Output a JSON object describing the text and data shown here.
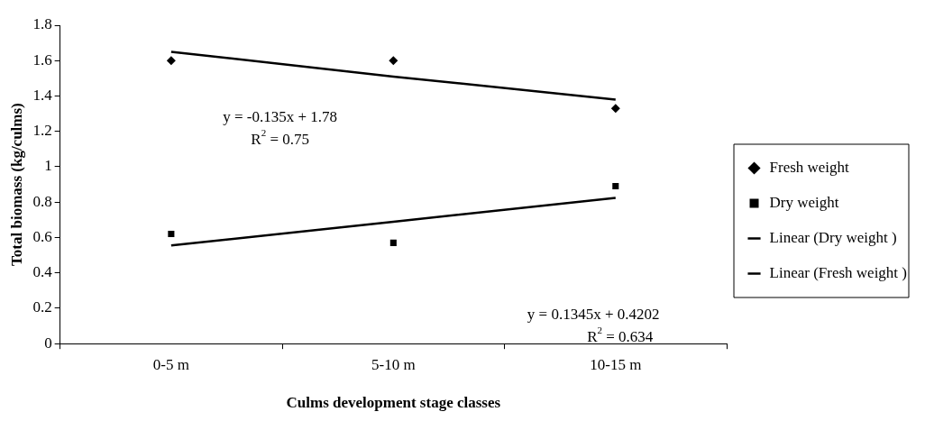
{
  "chart_data": {
    "type": "scatter",
    "xlabel": "Culms development stage classes",
    "ylabel": "Total biomass (kg/culms)",
    "categories": [
      "0-5 m",
      "5-10 m",
      "10-15 m"
    ],
    "series": [
      {
        "name": "Fresh weight",
        "color": "#000000",
        "marker": "diamond",
        "values": [
          1.6,
          1.6,
          1.33
        ]
      },
      {
        "name": "Dry weight",
        "color": "#000000",
        "marker": "square",
        "values": [
          0.62,
          0.57,
          0.89
        ]
      },
      {
        "name": "Linear (Dry weight )",
        "type": "line",
        "color": "#000000",
        "marker": "none",
        "values": [
          0.555,
          0.689,
          0.824
        ]
      },
      {
        "name": "Linear (Fresh weight )",
        "type": "line",
        "color": "#000000",
        "marker": "none",
        "values": [
          1.65,
          1.51,
          1.38
        ]
      }
    ],
    "ylim": [
      0,
      1.8
    ],
    "yticks": [
      0,
      0.2,
      0.4,
      0.6,
      0.8,
      1,
      1.2,
      1.4,
      1.6,
      1.8
    ],
    "legend": "right",
    "grid": false,
    "annotations": [
      "y = -0.135x + 1.78",
      "R$^{2}$ = 0.75",
      "y = 0.1345x + 0.4202",
      "R$^{2}$ = 0.634"
    ]
  }
}
